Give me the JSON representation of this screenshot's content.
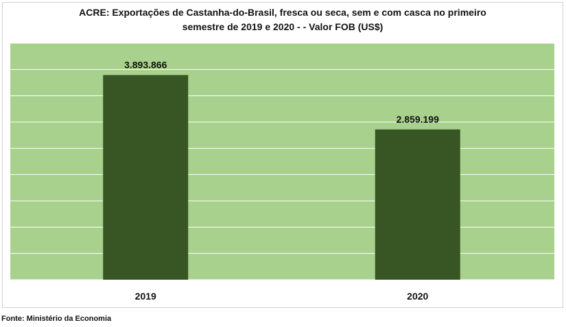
{
  "chart_data": {
    "type": "bar",
    "title": "ACRE: Exportações de Castanha-do-Brasil, fresca ou seca, sem e com casca no primeiro semestre de 2019 e 2020 - - Valor FOB (US$)",
    "categories": [
      "2019",
      "2020"
    ],
    "values": [
      3893866,
      2859199
    ],
    "value_labels": [
      "3.893.866",
      "2.859.199"
    ],
    "color": "#375623",
    "background": "#a9d18e",
    "ylim": [
      0,
      4500000
    ],
    "yticks": [
      0,
      500000,
      1000000,
      1500000,
      2000000,
      2500000,
      3000000,
      3500000,
      4000000,
      4500000
    ],
    "grid": true,
    "source": "Fonte: Ministério da Economia"
  }
}
